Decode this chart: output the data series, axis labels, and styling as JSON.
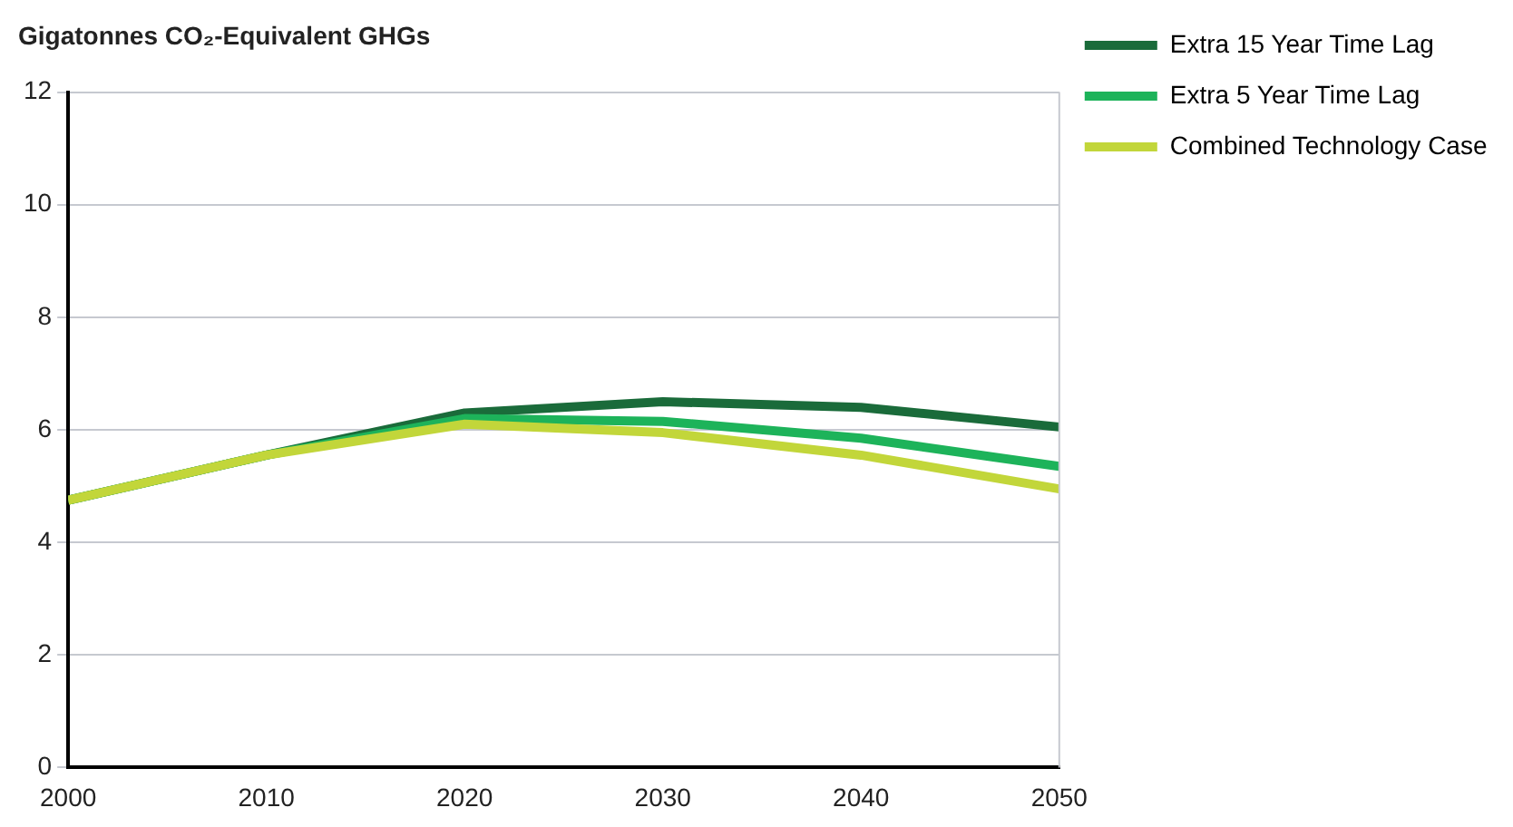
{
  "chart_data": {
    "type": "line",
    "ylabel": "Gigatonnes CO₂-Equivalent GHGs",
    "x": [
      2000,
      2010,
      2020,
      2030,
      2040,
      2050
    ],
    "series": [
      {
        "name": "Extra 15 Year Time Lag",
        "color": "#1a6b3a",
        "values": [
          4.75,
          5.55,
          6.3,
          6.5,
          6.4,
          6.05
        ]
      },
      {
        "name": "Extra 5 Year Time Lag",
        "color": "#1db35a",
        "values": [
          4.75,
          5.55,
          6.2,
          6.15,
          5.85,
          5.35
        ]
      },
      {
        "name": "Combined Technology Case",
        "color": "#c2d63a",
        "values": [
          4.75,
          5.55,
          6.1,
          5.95,
          5.55,
          4.95
        ]
      }
    ],
    "xlim": [
      2000,
      2050
    ],
    "xticks": [
      2000,
      2010,
      2020,
      2030,
      2040,
      2050
    ],
    "ylim": [
      0,
      12
    ],
    "yticks": [
      0,
      2,
      4,
      6,
      8,
      10,
      12
    ],
    "grid": "y",
    "legend": "right",
    "marker": "none",
    "line_style": "solid"
  }
}
